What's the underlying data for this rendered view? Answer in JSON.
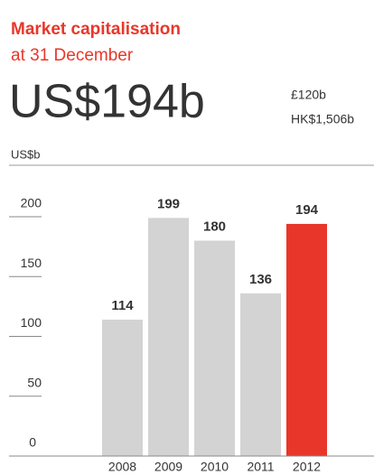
{
  "chart_data": {
    "type": "bar",
    "title": "Market capitalisation",
    "subtitle": "at 31 December",
    "headline": "US$194b",
    "headline_notes": [
      "£120b",
      "HK$1,506b"
    ],
    "y_label": "US$b",
    "categories": [
      "2008",
      "2009",
      "2010",
      "2011",
      "2012"
    ],
    "values": [
      114,
      199,
      180,
      136,
      194
    ],
    "colors": [
      "#d3d3d3",
      "#d3d3d3",
      "#d3d3d3",
      "#d3d3d3",
      "#e8372a"
    ],
    "ylim": [
      0,
      200
    ],
    "yticks": [
      0,
      50,
      100,
      150,
      200
    ]
  }
}
